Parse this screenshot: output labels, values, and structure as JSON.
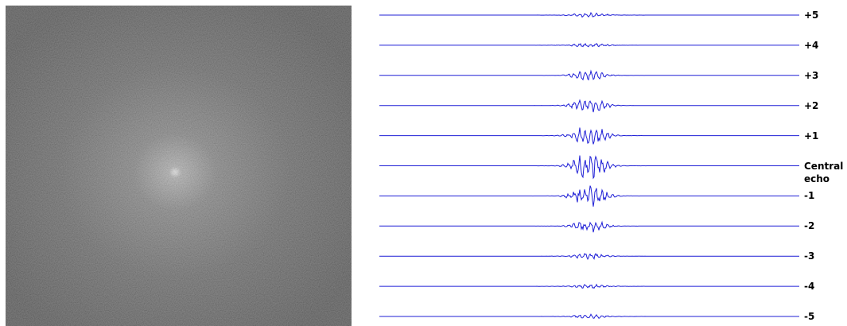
{
  "echo_labels": [
    "+5",
    "+4",
    "+3",
    "+2",
    "+1",
    "Central echo",
    "-1",
    "-2",
    "-3",
    "-4",
    "-5"
  ]
}
